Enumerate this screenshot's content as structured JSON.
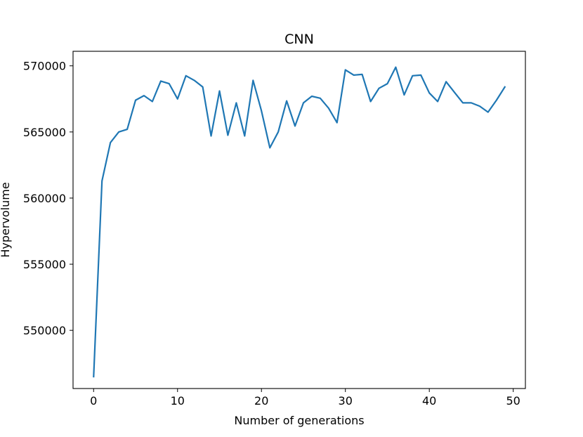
{
  "chart_data": {
    "type": "line",
    "title": "CNN",
    "xlabel": "Number of generations",
    "ylabel": "Hypervolume",
    "xlim": [
      -2.45,
      51.45
    ],
    "ylim": [
      545600,
      571100
    ],
    "xticks": [
      0,
      10,
      20,
      30,
      40,
      50
    ],
    "yticks": [
      550000,
      555000,
      560000,
      565000,
      570000
    ],
    "grid": false,
    "series": [
      {
        "color": "#1f77b4",
        "x": [
          0,
          1,
          2,
          3,
          4,
          5,
          6,
          7,
          8,
          9,
          10,
          11,
          12,
          13,
          14,
          15,
          16,
          17,
          18,
          19,
          20,
          21,
          22,
          23,
          24,
          25,
          26,
          27,
          28,
          29,
          30,
          31,
          32,
          33,
          34,
          35,
          36,
          37,
          38,
          39,
          40,
          41,
          42,
          43,
          44,
          45,
          46,
          47,
          48,
          49
        ],
        "values": [
          546500,
          561300,
          564200,
          565000,
          565200,
          567400,
          567750,
          567300,
          568850,
          568650,
          567500,
          569250,
          568900,
          568400,
          564700,
          568100,
          564750,
          567200,
          564700,
          568900,
          566600,
          563800,
          565000,
          567350,
          565450,
          567200,
          567700,
          567550,
          566800,
          565700,
          569700,
          569300,
          569350,
          567300,
          568300,
          568650,
          569900,
          567800,
          569250,
          569300,
          567950,
          567300,
          568800,
          568000,
          567200,
          567200,
          566950,
          566500,
          567400,
          568400
        ]
      }
    ]
  }
}
